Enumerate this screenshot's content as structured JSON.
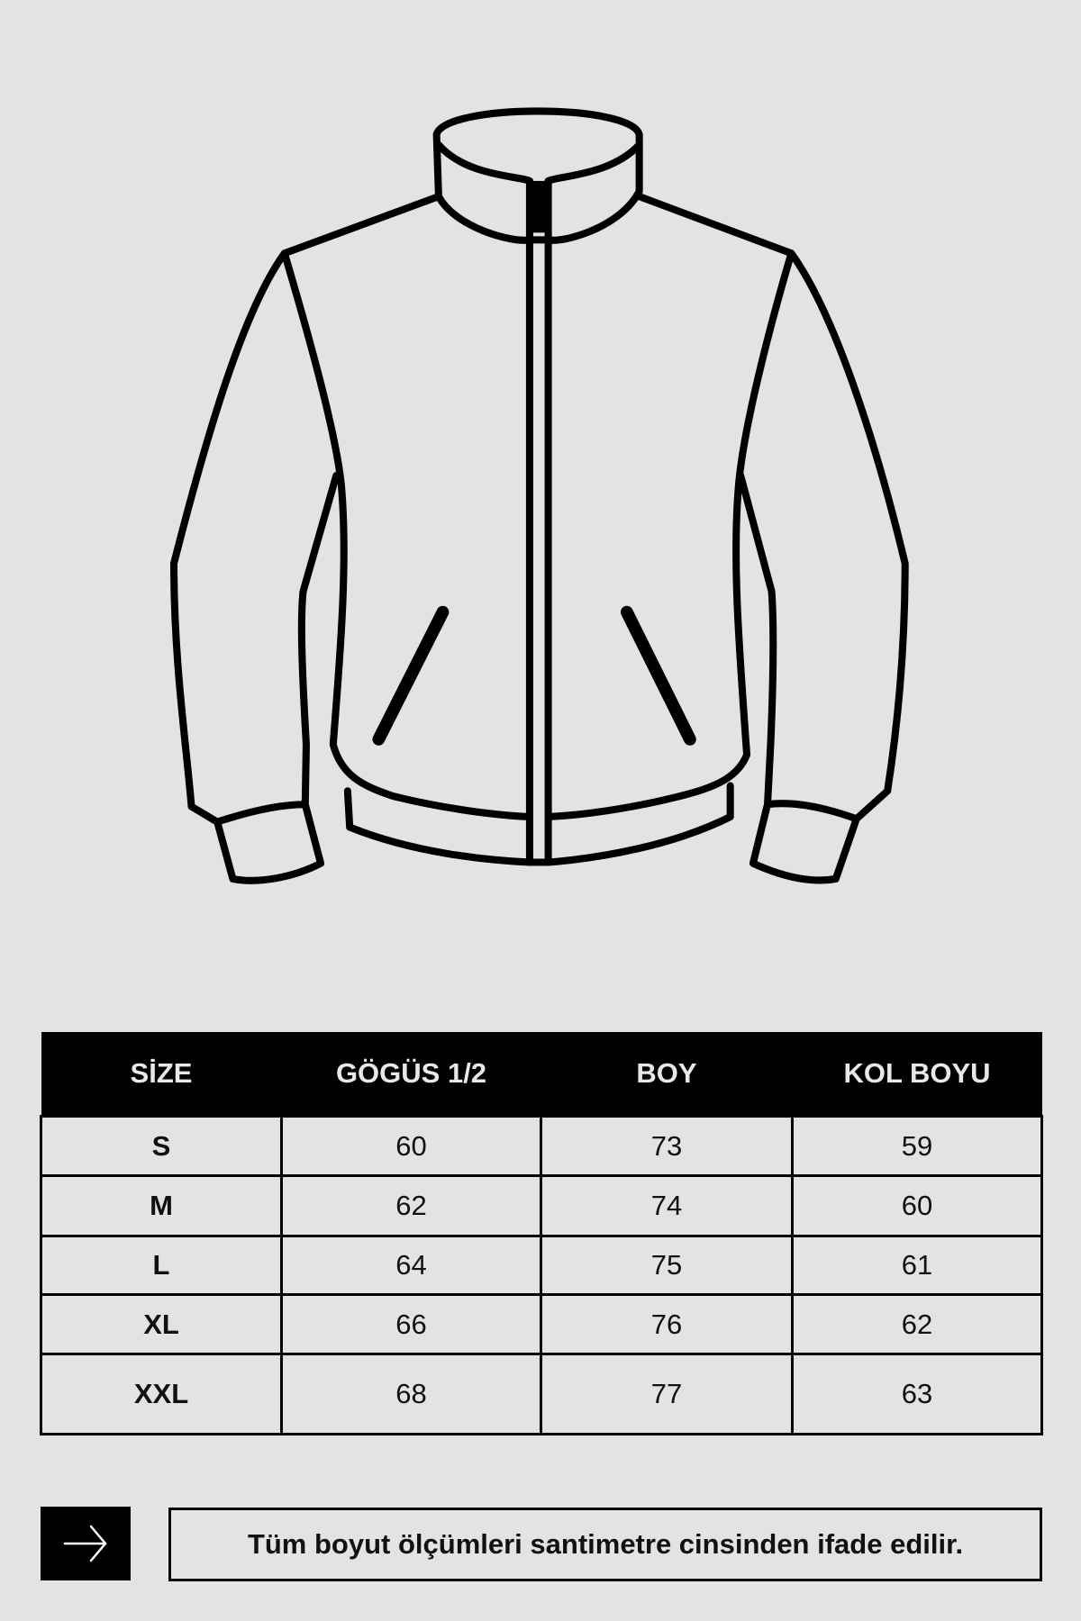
{
  "illustration": {
    "icon": "jacket-line-drawing"
  },
  "table": {
    "headers": [
      "SİZE",
      "GÖGÜS 1/2",
      "BOY",
      "KOL BOYU"
    ],
    "rows": [
      [
        "S",
        "60",
        "73",
        "59"
      ],
      [
        "M",
        "62",
        "74",
        "60"
      ],
      [
        "L",
        "64",
        "75",
        "61"
      ],
      [
        "XL",
        "66",
        "76",
        "62"
      ],
      [
        "XXL",
        "68",
        "77",
        "63"
      ]
    ]
  },
  "footer": {
    "icon": "arrow-right-icon",
    "note": "Tüm boyut ölçümleri santimetre cinsinden ifade edilir."
  }
}
